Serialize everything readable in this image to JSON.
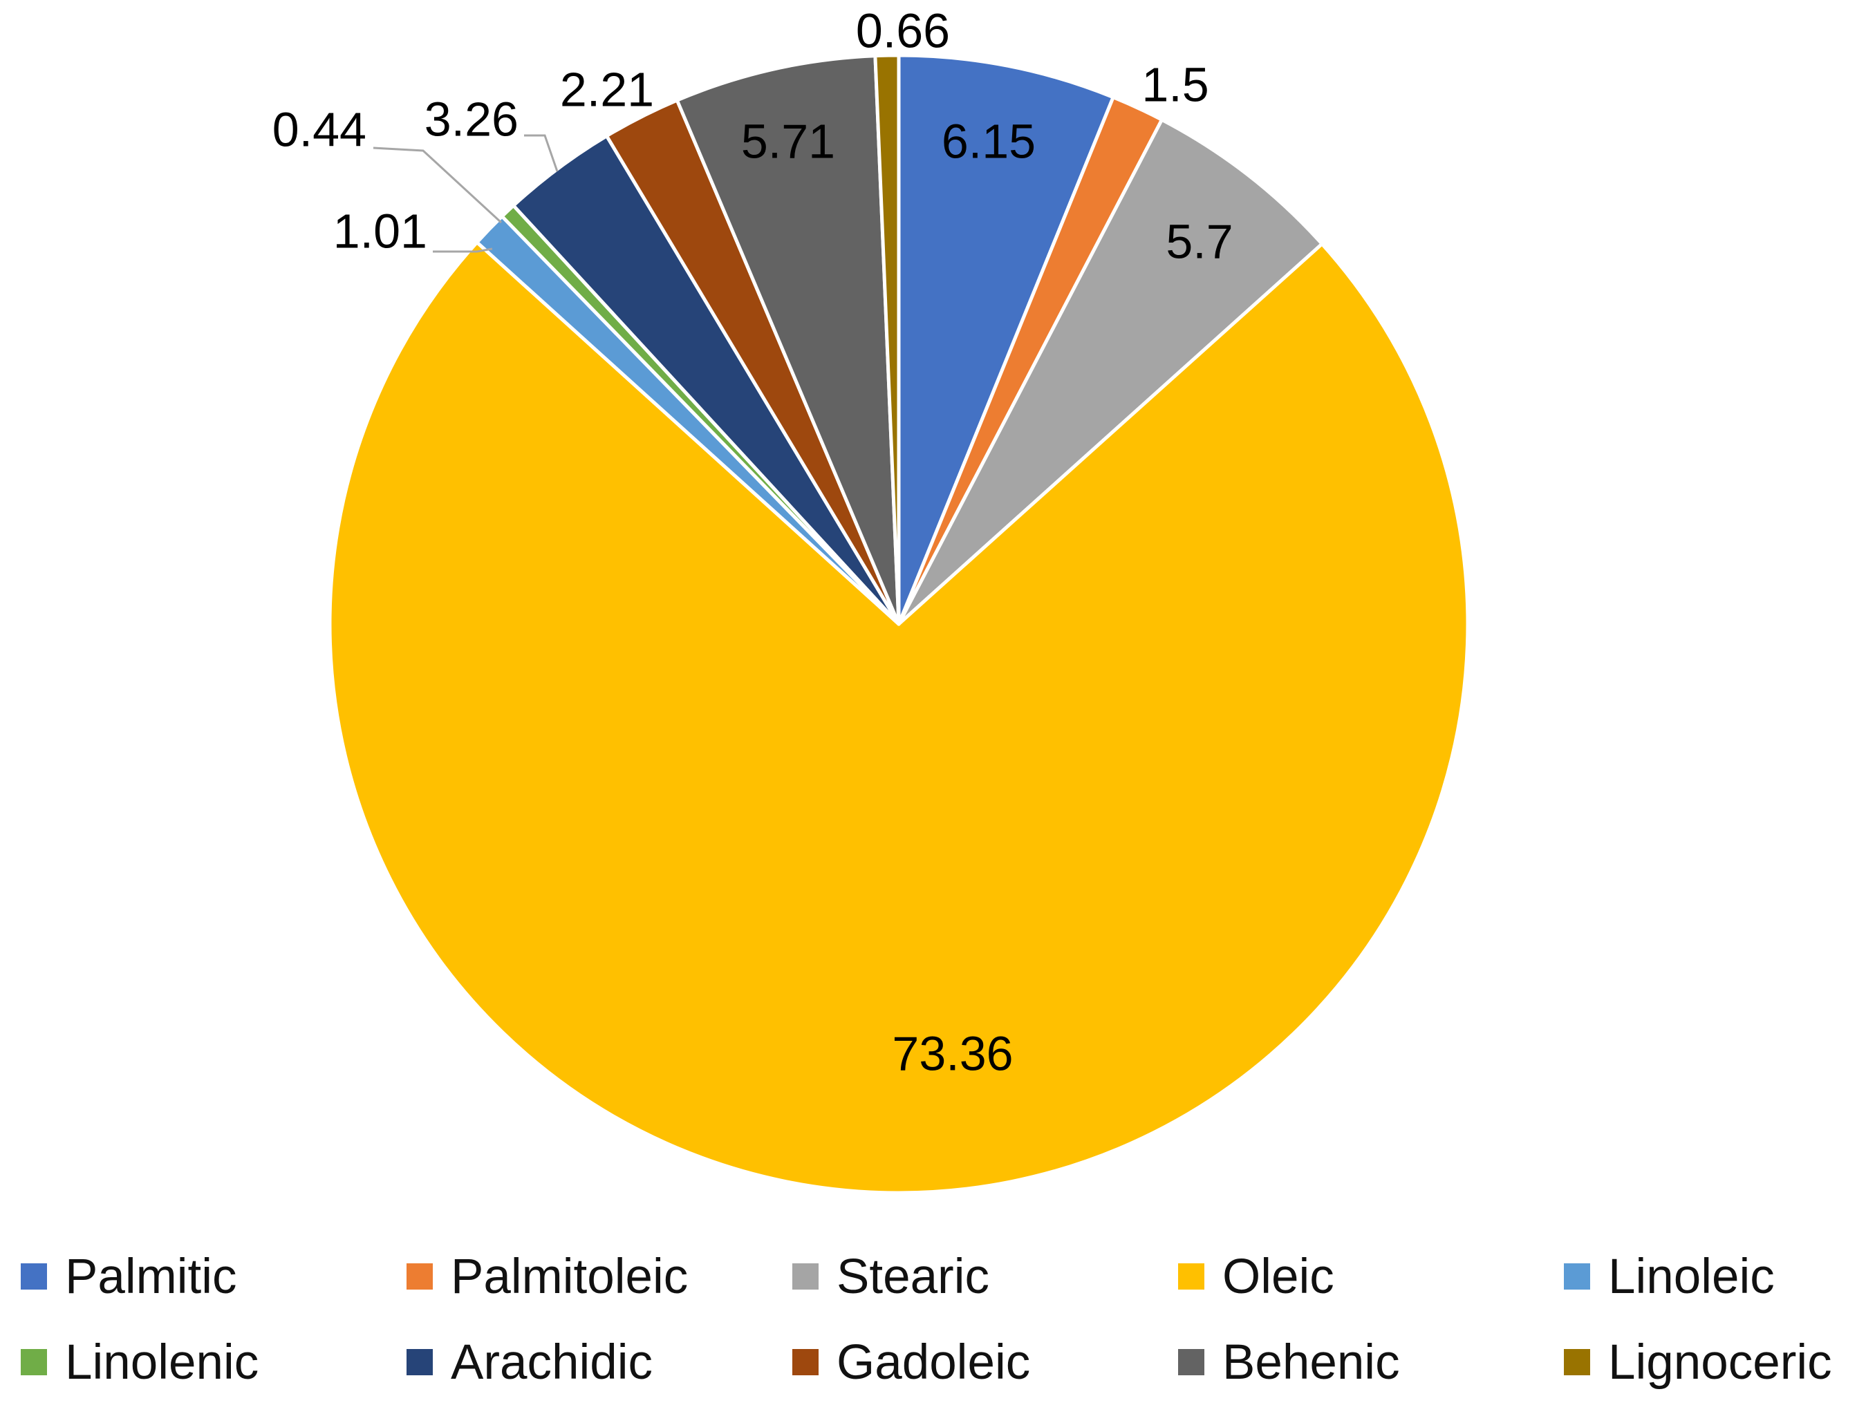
{
  "chart_data": {
    "type": "pie",
    "start_angle_deg": 0,
    "direction": "clockwise",
    "legend_position": "bottom",
    "slices": [
      {
        "name": "Palmitic",
        "value": 6.15,
        "label": "6.15",
        "color": "#4472C4"
      },
      {
        "name": "Palmitoleic",
        "value": 1.5,
        "label": "1.5",
        "color": "#ED7D31"
      },
      {
        "name": "Stearic",
        "value": 5.7,
        "label": "5.7",
        "color": "#A5A5A5"
      },
      {
        "name": "Oleic",
        "value": 73.36,
        "label": "73.36",
        "color": "#FFC000"
      },
      {
        "name": "Linoleic",
        "value": 1.01,
        "label": "1.01",
        "color": "#5B9BD5"
      },
      {
        "name": "Linolenic",
        "value": 0.44,
        "label": "0.44",
        "color": "#70AD47"
      },
      {
        "name": "Arachidic",
        "value": 3.26,
        "label": "3.26",
        "color": "#264478"
      },
      {
        "name": "Gadoleic",
        "value": 2.21,
        "label": "2.21",
        "color": "#9E480E"
      },
      {
        "name": "Behenic",
        "value": 5.71,
        "label": "5.71",
        "color": "#636363"
      },
      {
        "name": "Lignoceric",
        "value": 0.66,
        "label": "0.66",
        "color": "#997300"
      }
    ]
  }
}
